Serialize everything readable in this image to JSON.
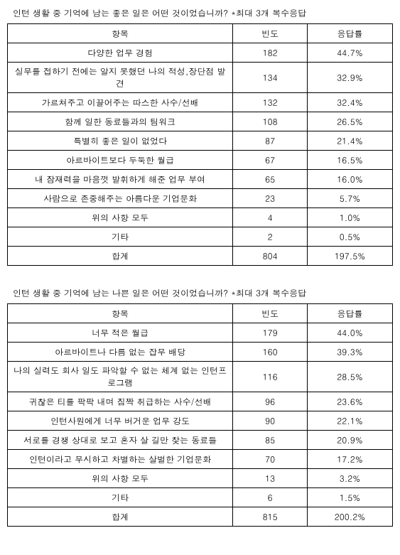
{
  "table1": {
    "title": "인턴 생활 중 기억에 남는 좋은 일은 어떤 것이었습니까? *최대 3개 복수응답",
    "columns": [
      "항목",
      "빈도",
      "응답률"
    ],
    "rows": [
      {
        "item": "다양한 업무 경험",
        "freq": "182",
        "rate": "44.7%"
      },
      {
        "item": "실무를 접하기 전에는 알지 못했던 나의 적성,장단점 발견",
        "freq": "134",
        "rate": "32.9%"
      },
      {
        "item": "가르쳐주고 이끌어주는 따스한 사수/선배",
        "freq": "132",
        "rate": "32.4%"
      },
      {
        "item": "함께 일한 동료들과의 팀워크",
        "freq": "108",
        "rate": "26.5%"
      },
      {
        "item": "특별히 좋은 일이 없었다",
        "freq": "87",
        "rate": "21.4%"
      },
      {
        "item": "아르바이트보다 두둑한 월급",
        "freq": "67",
        "rate": "16.5%"
      },
      {
        "item": "내 잠재력을 마음껏 발휘하게 해준 업무 부여",
        "freq": "65",
        "rate": "16.0%"
      },
      {
        "item": "사람으로 존중해주는 아름다운 기업문화",
        "freq": "23",
        "rate": "5.7%"
      },
      {
        "item": "위의 사항 모두",
        "freq": "4",
        "rate": "1.0%"
      },
      {
        "item": "기타",
        "freq": "2",
        "rate": "0.5%"
      },
      {
        "item": "합계",
        "freq": "804",
        "rate": "197.5%"
      }
    ]
  },
  "table2": {
    "title": "인턴 생활 중 기억에 남는 나쁜 일은 어떤 것이었습니까? *최대 3개 복수응답",
    "columns": [
      "항목",
      "빈도",
      "응답률"
    ],
    "rows": [
      {
        "item": "너무 적은 월급",
        "freq": "179",
        "rate": "44.0%"
      },
      {
        "item": "아르바이트나 다름 없는 잡무 배당",
        "freq": "160",
        "rate": "39.3%"
      },
      {
        "item": "나의 실력도 회사 일도 파악할 수 없는 체계 없는 인턴프로그램",
        "freq": "116",
        "rate": "28.5%"
      },
      {
        "item": "귀찮은 티를 팍팍 내며 짐짝 취급하는 사수/선배",
        "freq": "96",
        "rate": "23.6%"
      },
      {
        "item": "인턴사원에게 너무 버거운 업무 강도",
        "freq": "90",
        "rate": "22.1%"
      },
      {
        "item": "서로를 경쟁 상대로 보고 혼자 살 길만 찾는 동료들",
        "freq": "85",
        "rate": "20.9%"
      },
      {
        "item": "인턴이라고 무시하고 차별하는 살벌한 기업문화",
        "freq": "70",
        "rate": "17.2%"
      },
      {
        "item": "위의 사항 모두",
        "freq": "13",
        "rate": "3.2%"
      },
      {
        "item": "기타",
        "freq": "6",
        "rate": "1.5%"
      },
      {
        "item": "합계",
        "freq": "815",
        "rate": "200.2%"
      }
    ]
  }
}
